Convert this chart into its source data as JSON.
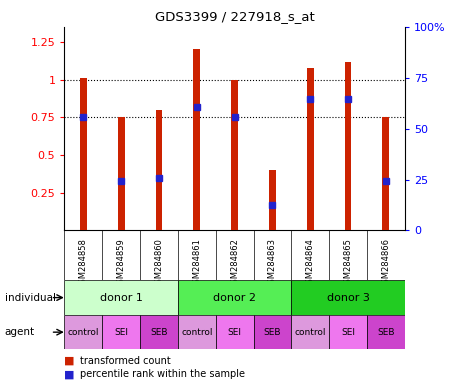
{
  "title": "GDS3399 / 227918_s_at",
  "samples": [
    "GSM284858",
    "GSM284859",
    "GSM284860",
    "GSM284861",
    "GSM284862",
    "GSM284863",
    "GSM284864",
    "GSM284865",
    "GSM284866"
  ],
  "red_values": [
    1.01,
    0.75,
    0.8,
    1.2,
    1.0,
    0.4,
    1.08,
    1.12,
    0.75
  ],
  "blue_values": [
    0.75,
    0.33,
    0.35,
    0.82,
    0.75,
    0.17,
    0.87,
    0.87,
    0.33
  ],
  "ylim_left": [
    0.0,
    1.35
  ],
  "ylim_right": [
    0,
    100
  ],
  "yticks_left": [
    0.25,
    0.5,
    0.75,
    1.0,
    1.25
  ],
  "yticks_right": [
    0,
    25,
    50,
    75,
    100
  ],
  "ytick_labels_left": [
    "0.25",
    "0.5",
    "0.75",
    "1",
    "1.25"
  ],
  "ytick_labels_right": [
    "0",
    "25",
    "50",
    "75",
    "100%"
  ],
  "dotted_lines": [
    0.75,
    1.0
  ],
  "bar_color": "#cc2200",
  "dot_color": "#2222cc",
  "individual_labels": [
    "donor 1",
    "donor 2",
    "donor 3"
  ],
  "individual_colors": [
    "#ccffcc",
    "#55ee55",
    "#22cc22"
  ],
  "agent_colors": [
    "#dd99dd",
    "#ee77ee",
    "#cc44cc",
    "#dd99dd",
    "#ee77ee",
    "#cc44cc",
    "#dd99dd",
    "#ee77ee",
    "#cc44cc"
  ],
  "agent_labels": [
    "control",
    "SEI",
    "SEB",
    "control",
    "SEI",
    "SEB",
    "control",
    "SEI",
    "SEB"
  ],
  "plot_bg": "#ffffff",
  "sample_bg": "#d8d8d8",
  "bar_width": 0.18
}
